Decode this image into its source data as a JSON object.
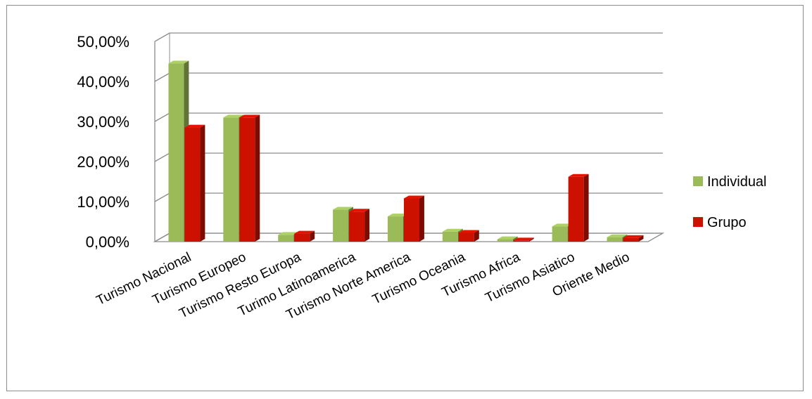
{
  "chart_data": {
    "type": "bar",
    "title": "",
    "xlabel": "",
    "ylabel": "",
    "categories": [
      "Turismo Nacional",
      "Turismo Europeo",
      "Turismo Resto Europa",
      "Turimo Latinoamerica",
      "Turismo Norte America",
      "Turismo Oceania",
      "Turismo Africa",
      "Turismo Asiatico",
      "Oriente Medio"
    ],
    "series": [
      {
        "name": "Individual",
        "color": "#9bbb59",
        "values": [
          44.5,
          31.0,
          1.7,
          8.0,
          6.3,
          2.5,
          0.6,
          3.8,
          1.1
        ]
      },
      {
        "name": "Grupo",
        "color": "#cc1100",
        "values": [
          28.5,
          31.0,
          2.0,
          7.5,
          10.8,
          2.2,
          0.3,
          16.2,
          0.9
        ]
      }
    ],
    "ylim": [
      0,
      50
    ],
    "yticks": [
      "0,00%",
      "10,00%",
      "20,00%",
      "30,00%",
      "40,00%",
      "50,00%"
    ],
    "grid": true,
    "legend_position": "right",
    "style": "3d-clustered-column"
  }
}
